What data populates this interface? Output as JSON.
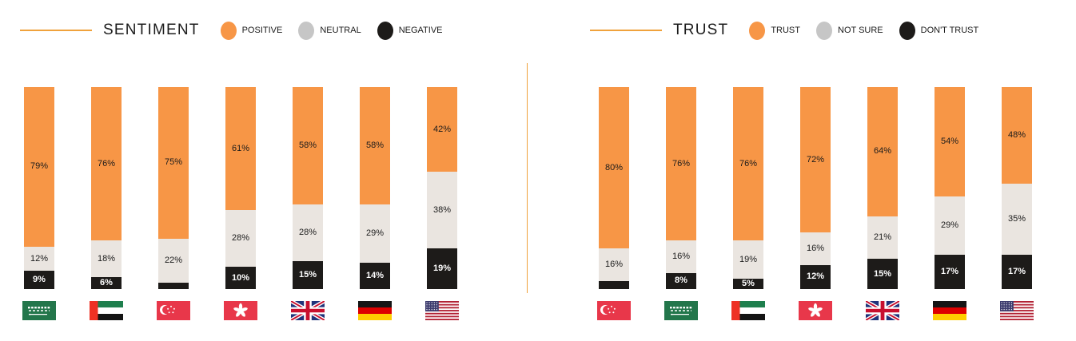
{
  "page": {
    "background": "#ffffff",
    "divider_color": "#F0A23C",
    "title_rule_color": "#F0A23C"
  },
  "colors": {
    "positive_orange": "#F79646",
    "neutral_bar": "#EAE5E0",
    "negative_black": "#1D1B19",
    "legend_gray": "#C6C6C6",
    "label_dark": "#1b1b1b",
    "label_light": "#ffffff"
  },
  "chart_data": [
    {
      "type": "bar",
      "stacked": true,
      "orientation": "vertical",
      "title": "SENTIMENT",
      "unit": "%",
      "ylim": [
        0,
        100
      ],
      "legend_position": "top",
      "legend": [
        {
          "label": "POSITIVE",
          "color": "#F79646"
        },
        {
          "label": "NEUTRAL",
          "color": "#C6C6C6"
        },
        {
          "label": "NEGATIVE",
          "color": "#1D1B19"
        }
      ],
      "categories": [
        "Saudi Arabia",
        "United Arab Emirates",
        "Singapore",
        "Hong Kong",
        "United Kingdom",
        "Germany",
        "United States"
      ],
      "flag_icons": [
        "flag-saudi-arabia",
        "flag-uae",
        "flag-singapore",
        "flag-hong-kong",
        "flag-united-kingdom",
        "flag-germany",
        "flag-united-states"
      ],
      "flag_codes": [
        "sa",
        "ae",
        "sg",
        "hk",
        "gb",
        "de",
        "us"
      ],
      "series": [
        {
          "name": "POSITIVE",
          "color": "#F79646",
          "values": [
            79,
            76,
            75,
            61,
            58,
            58,
            42
          ],
          "labels": [
            "79%",
            "76%",
            "75%",
            "61%",
            "58%",
            "58%",
            "42%"
          ],
          "label_color": "#1b1b1b",
          "label_bold": false
        },
        {
          "name": "NEUTRAL",
          "color": "#EAE5E0",
          "values": [
            12,
            18,
            22,
            28,
            28,
            29,
            38
          ],
          "labels": [
            "12%",
            "18%",
            "22%",
            "28%",
            "28%",
            "29%",
            "38%"
          ],
          "label_color": "#1b1b1b",
          "label_bold": false
        },
        {
          "name": "NEGATIVE",
          "color": "#1D1B19",
          "values": [
            9,
            6,
            3,
            10,
            15,
            14,
            19
          ],
          "labels": [
            "9%",
            "6%",
            "",
            "10%",
            "15%",
            "14%",
            "19%"
          ],
          "label_color": "#ffffff",
          "label_bold": true
        }
      ]
    },
    {
      "type": "bar",
      "stacked": true,
      "orientation": "vertical",
      "title": "TRUST",
      "unit": "%",
      "ylim": [
        0,
        100
      ],
      "legend_position": "top",
      "legend": [
        {
          "label": "TRUST",
          "color": "#F79646"
        },
        {
          "label": "NOT SURE",
          "color": "#C6C6C6"
        },
        {
          "label": "DON'T TRUST",
          "color": "#1D1B19"
        }
      ],
      "categories": [
        "Singapore",
        "Saudi Arabia",
        "United Arab Emirates",
        "Hong Kong",
        "United Kingdom",
        "Germany",
        "United States"
      ],
      "flag_icons": [
        "flag-singapore",
        "flag-saudi-arabia",
        "flag-uae",
        "flag-hong-kong",
        "flag-united-kingdom",
        "flag-germany",
        "flag-united-states"
      ],
      "flag_codes": [
        "sg",
        "sa",
        "ae",
        "hk",
        "gb",
        "de",
        "us"
      ],
      "series": [
        {
          "name": "TRUST",
          "color": "#F79646",
          "values": [
            80,
            76,
            76,
            72,
            64,
            54,
            48
          ],
          "labels": [
            "80%",
            "76%",
            "76%",
            "72%",
            "64%",
            "54%",
            "48%"
          ],
          "label_color": "#1b1b1b",
          "label_bold": false
        },
        {
          "name": "NOT SURE",
          "color": "#EAE5E0",
          "values": [
            16,
            16,
            19,
            16,
            21,
            29,
            35
          ],
          "labels": [
            "16%",
            "16%",
            "19%",
            "16%",
            "21%",
            "29%",
            "35%"
          ],
          "label_color": "#1b1b1b",
          "label_bold": false
        },
        {
          "name": "DON'T TRUST",
          "color": "#1D1B19",
          "values": [
            4,
            8,
            5,
            12,
            15,
            17,
            17
          ],
          "labels": [
            "",
            "8%",
            "5%",
            "12%",
            "15%",
            "17%",
            "17%"
          ],
          "label_color": "#ffffff",
          "label_bold": true
        }
      ]
    }
  ]
}
